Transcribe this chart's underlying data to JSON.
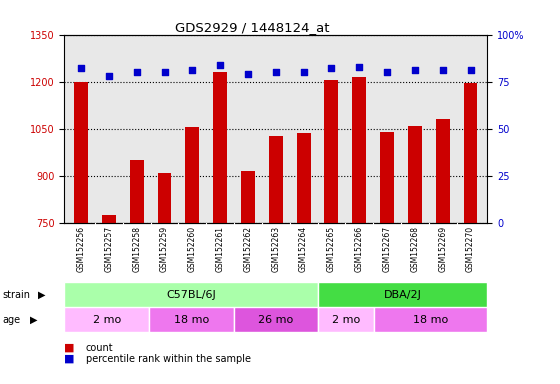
{
  "title": "GDS2929 / 1448124_at",
  "samples": [
    "GSM152256",
    "GSM152257",
    "GSM152258",
    "GSM152259",
    "GSM152260",
    "GSM152261",
    "GSM152262",
    "GSM152263",
    "GSM152264",
    "GSM152265",
    "GSM152266",
    "GSM152267",
    "GSM152268",
    "GSM152269",
    "GSM152270"
  ],
  "counts": [
    1200,
    775,
    950,
    910,
    1055,
    1230,
    915,
    1025,
    1035,
    1205,
    1215,
    1040,
    1060,
    1080,
    1195
  ],
  "percentile_ranks": [
    82,
    78,
    80,
    80,
    81,
    84,
    79,
    80,
    80,
    82,
    83,
    80,
    81,
    81,
    81
  ],
  "ylim_left": [
    750,
    1350
  ],
  "ylim_right": [
    0,
    100
  ],
  "yticks_left": [
    750,
    900,
    1050,
    1200,
    1350
  ],
  "yticks_right": [
    0,
    25,
    50,
    75,
    100
  ],
  "bar_color": "#cc0000",
  "dot_color": "#0000cc",
  "bg_color": "#e8e8e8",
  "strain_groups": [
    {
      "label": "C57BL/6J",
      "start": 0,
      "end": 9,
      "color": "#aaffaa"
    },
    {
      "label": "DBA/2J",
      "start": 9,
      "end": 15,
      "color": "#44dd44"
    }
  ],
  "age_groups": [
    {
      "label": "2 mo",
      "start": 0,
      "end": 3,
      "color": "#ffbbff"
    },
    {
      "label": "18 mo",
      "start": 3,
      "end": 6,
      "color": "#ee77ee"
    },
    {
      "label": "26 mo",
      "start": 6,
      "end": 9,
      "color": "#dd55dd"
    },
    {
      "label": "2 mo",
      "start": 9,
      "end": 11,
      "color": "#ffbbff"
    },
    {
      "label": "18 mo",
      "start": 11,
      "end": 15,
      "color": "#ee77ee"
    }
  ]
}
